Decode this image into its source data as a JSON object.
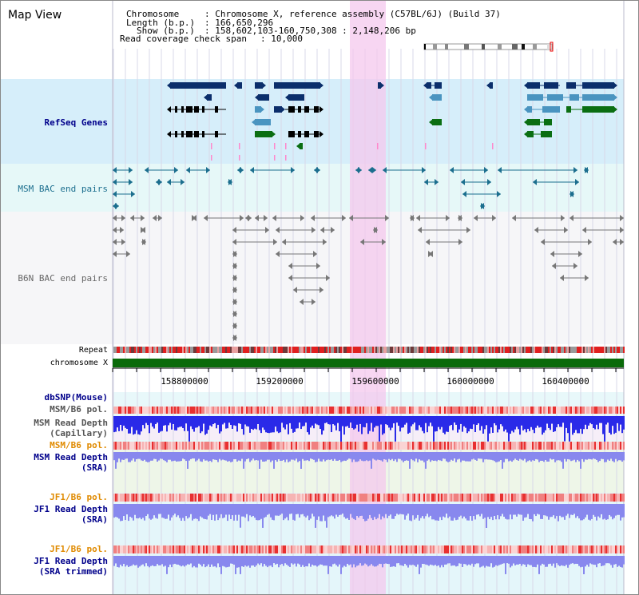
{
  "view_title": "Map View",
  "info": {
    "chromosome_label": "Chromosome",
    "chromosome_value": ": Chromosome X, reference assembly (C57BL/6J) (Build 37)",
    "length_label": "Length (b.p.)",
    "length_value": ": 166,650,296",
    "show_label": "Show (b.p.)",
    "show_value": ": 158,602,103-160,750,308 : 2,148,206 bp",
    "coverage_label": "Read coverage check span",
    "coverage_value": ": 10,000"
  },
  "tracks": {
    "refseq": "RefSeq Genes",
    "msm_bac": "MSM BAC end pairs",
    "b6n_bac": "B6N BAC end pairs",
    "repeat": "Repeat",
    "chromosome": "chromosome X",
    "dbsnp": "dbSNP(Mouse)",
    "msm_b6_pol_1": "MSM/B6 pol.",
    "msm_depth_cap_1": "MSM Read Depth",
    "msm_depth_cap_2": "(Capillary)",
    "msm_b6_pol_2": "MSM/B6 pol.",
    "msm_depth_sra_1": "MSM Read Depth",
    "msm_depth_sra_2": "(SRA)",
    "jf1_pol_1": "JF1/B6 pol.",
    "jf1_depth_1": "JF1 Read Depth",
    "jf1_depth_2": "(SRA)",
    "jf1_pol_2": "JF1/B6 pol.",
    "jf1_trim_1": "JF1 Read Depth",
    "jf1_trim_2": "(SRA trimmed)"
  },
  "axis_ticks": [
    "158800000",
    "159200000",
    "159600000",
    "160000000",
    "160400000"
  ],
  "colors": {
    "refseq_dark": "#0b2e6b",
    "refseq_light": "#4a94c0",
    "refseq_green": "#0b6e12",
    "msm_bac": "#1b6e8e",
    "b6n_bac": "#777777",
    "highlight": "#f4c8ee",
    "chromosome": "#0a6a0a",
    "depth_blue": "#2a2ae8",
    "depth_sra": "#8888ee"
  }
}
